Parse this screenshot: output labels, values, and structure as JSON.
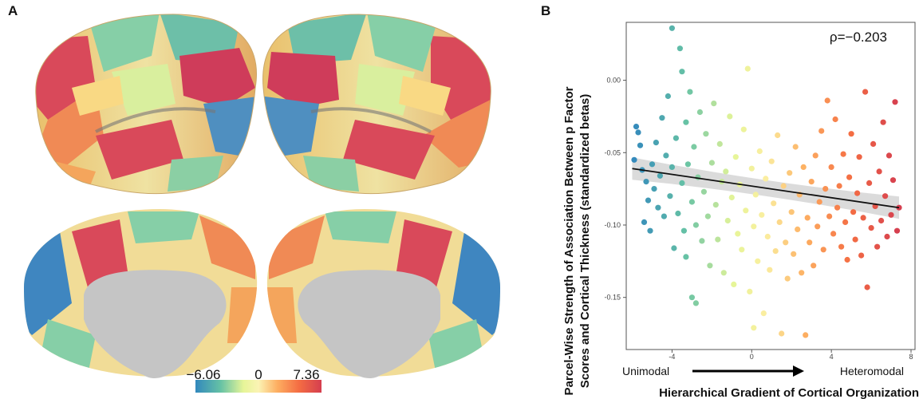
{
  "panel_a": {
    "label": "A",
    "colorbar": {
      "min_label": "−6.06",
      "mid_label": "0",
      "max_label": "7.36"
    }
  },
  "panel_b": {
    "label": "B",
    "ylabel_line1": "Parcel-Wise Strength of Association Between p Factor",
    "ylabel_line2": "Scores and Cortical Thickness (standardized betas)",
    "xlabel": "Hierarchical Gradient of Cortical Organization",
    "x_left": "Unimodal",
    "x_right": "Heteromodal",
    "annotation": "ρ=−0.203"
  },
  "chart_data": {
    "type": "scatter",
    "xlabel": "Hierarchical Gradient of Cortical Organization",
    "ylabel": "Parcel-Wise Strength of Association Between p Factor Scores and Cortical Thickness (standardized betas)",
    "xlim": [
      -6.3,
      8.2
    ],
    "ylim": [
      -0.186,
      0.04
    ],
    "x_ticks": [
      "-4",
      "0",
      "4",
      "8"
    ],
    "x_tick_values": [
      -4,
      0,
      4,
      8
    ],
    "y_ticks": [
      "0.00",
      "-0.05",
      "-0.10",
      "-0.15"
    ],
    "y_tick_values": [
      0.0,
      -0.05,
      -0.1,
      -0.15
    ],
    "annotation": "ρ=−0.203",
    "regression_line": {
      "x": [
        -6.0,
        7.4
      ],
      "y": [
        -0.061,
        -0.088
      ]
    },
    "colormap": "Spectral (blue = unimodal, red = heteromodal)",
    "points": [
      [
        -5.8,
        -0.032
      ],
      [
        -5.6,
        -0.045
      ],
      [
        -5.5,
        -0.062
      ],
      [
        -5.3,
        -0.07
      ],
      [
        -5.9,
        -0.055
      ],
      [
        -5.2,
        -0.083
      ],
      [
        -5.4,
        -0.098
      ],
      [
        -5.1,
        -0.104
      ],
      [
        -5.7,
        -0.036
      ],
      [
        -5.0,
        -0.058
      ],
      [
        -4.9,
        -0.075
      ],
      [
        -4.8,
        -0.043
      ],
      [
        -4.7,
        -0.088
      ],
      [
        -4.6,
        -0.066
      ],
      [
        -4.5,
        -0.026
      ],
      [
        -4.4,
        -0.094
      ],
      [
        -4.3,
        -0.052
      ],
      [
        -4.2,
        -0.011
      ],
      [
        -4.1,
        -0.08
      ],
      [
        -4.0,
        -0.06
      ],
      [
        -4.0,
        0.036
      ],
      [
        -3.9,
        -0.116
      ],
      [
        -3.8,
        -0.04
      ],
      [
        -3.7,
        -0.092
      ],
      [
        -3.6,
        0.022
      ],
      [
        -3.5,
        -0.071
      ],
      [
        -3.5,
        0.006
      ],
      [
        -3.4,
        -0.104
      ],
      [
        -3.3,
        -0.029
      ],
      [
        -3.3,
        -0.122
      ],
      [
        -3.2,
        -0.058
      ],
      [
        -3.1,
        -0.008
      ],
      [
        -3.0,
        -0.084
      ],
      [
        -3.0,
        -0.15
      ],
      [
        -2.9,
        -0.046
      ],
      [
        -2.8,
        -0.1
      ],
      [
        -2.8,
        -0.154
      ],
      [
        -2.7,
        -0.067
      ],
      [
        -2.6,
        -0.022
      ],
      [
        -2.5,
        -0.111
      ],
      [
        -2.4,
        -0.077
      ],
      [
        -2.3,
        -0.037
      ],
      [
        -2.2,
        -0.094
      ],
      [
        -2.1,
        -0.128
      ],
      [
        -2.0,
        -0.057
      ],
      [
        -1.9,
        -0.016
      ],
      [
        -1.8,
        -0.086
      ],
      [
        -1.7,
        -0.11
      ],
      [
        -1.6,
        -0.044
      ],
      [
        -1.5,
        -0.07
      ],
      [
        -1.4,
        -0.133
      ],
      [
        -1.3,
        -0.063
      ],
      [
        -1.2,
        -0.097
      ],
      [
        -1.1,
        -0.025
      ],
      [
        -1.0,
        -0.081
      ],
      [
        -0.9,
        -0.141
      ],
      [
        -0.8,
        -0.053
      ],
      [
        -0.7,
        -0.106
      ],
      [
        -0.6,
        -0.072
      ],
      [
        -0.5,
        -0.117
      ],
      [
        -0.4,
        -0.034
      ],
      [
        -0.3,
        -0.09
      ],
      [
        -0.2,
        0.008
      ],
      [
        -0.1,
        -0.146
      ],
      [
        0.0,
        -0.061
      ],
      [
        0.1,
        -0.101
      ],
      [
        0.1,
        -0.171
      ],
      [
        0.2,
        -0.079
      ],
      [
        0.3,
        -0.125
      ],
      [
        0.4,
        -0.049
      ],
      [
        0.5,
        -0.093
      ],
      [
        0.6,
        -0.161
      ],
      [
        0.7,
        -0.068
      ],
      [
        0.8,
        -0.108
      ],
      [
        0.9,
        -0.131
      ],
      [
        1.0,
        -0.056
      ],
      [
        1.1,
        -0.085
      ],
      [
        1.2,
        -0.118
      ],
      [
        1.3,
        -0.038
      ],
      [
        1.4,
        -0.098
      ],
      [
        1.5,
        -0.175
      ],
      [
        1.6,
        -0.073
      ],
      [
        1.7,
        -0.112
      ],
      [
        1.8,
        -0.137
      ],
      [
        1.9,
        -0.064
      ],
      [
        2.0,
        -0.091
      ],
      [
        2.1,
        -0.12
      ],
      [
        2.2,
        -0.046
      ],
      [
        2.3,
        -0.103
      ],
      [
        2.4,
        -0.079
      ],
      [
        2.5,
        -0.133
      ],
      [
        2.6,
        -0.06
      ],
      [
        2.7,
        -0.176
      ],
      [
        2.8,
        -0.095
      ],
      [
        2.9,
        -0.112
      ],
      [
        3.0,
        -0.07
      ],
      [
        3.1,
        -0.128
      ],
      [
        3.2,
        -0.052
      ],
      [
        3.3,
        -0.101
      ],
      [
        3.4,
        -0.084
      ],
      [
        3.5,
        -0.035
      ],
      [
        3.6,
        -0.117
      ],
      [
        3.7,
        -0.075
      ],
      [
        3.8,
        -0.014
      ],
      [
        3.9,
        -0.094
      ],
      [
        4.0,
        -0.06
      ],
      [
        4.1,
        -0.106
      ],
      [
        4.2,
        -0.027
      ],
      [
        4.3,
        -0.088
      ],
      [
        4.4,
        -0.073
      ],
      [
        4.5,
        -0.115
      ],
      [
        4.6,
        -0.051
      ],
      [
        4.7,
        -0.098
      ],
      [
        4.8,
        -0.124
      ],
      [
        4.9,
        -0.067
      ],
      [
        5.0,
        -0.037
      ],
      [
        5.1,
        -0.091
      ],
      [
        5.2,
        -0.11
      ],
      [
        5.3,
        -0.078
      ],
      [
        5.4,
        -0.053
      ],
      [
        5.5,
        -0.121
      ],
      [
        5.6,
        -0.095
      ],
      [
        5.7,
        -0.008
      ],
      [
        5.8,
        -0.143
      ],
      [
        5.9,
        -0.071
      ],
      [
        6.0,
        -0.102
      ],
      [
        6.1,
        -0.044
      ],
      [
        6.2,
        -0.087
      ],
      [
        6.3,
        -0.115
      ],
      [
        6.4,
        -0.063
      ],
      [
        6.5,
        -0.097
      ],
      [
        6.6,
        -0.029
      ],
      [
        6.7,
        -0.08
      ],
      [
        6.8,
        -0.108
      ],
      [
        6.9,
        -0.052
      ],
      [
        7.0,
        -0.093
      ],
      [
        7.1,
        -0.069
      ],
      [
        7.2,
        -0.015
      ],
      [
        7.3,
        -0.104
      ],
      [
        7.4,
        -0.088
      ]
    ]
  }
}
